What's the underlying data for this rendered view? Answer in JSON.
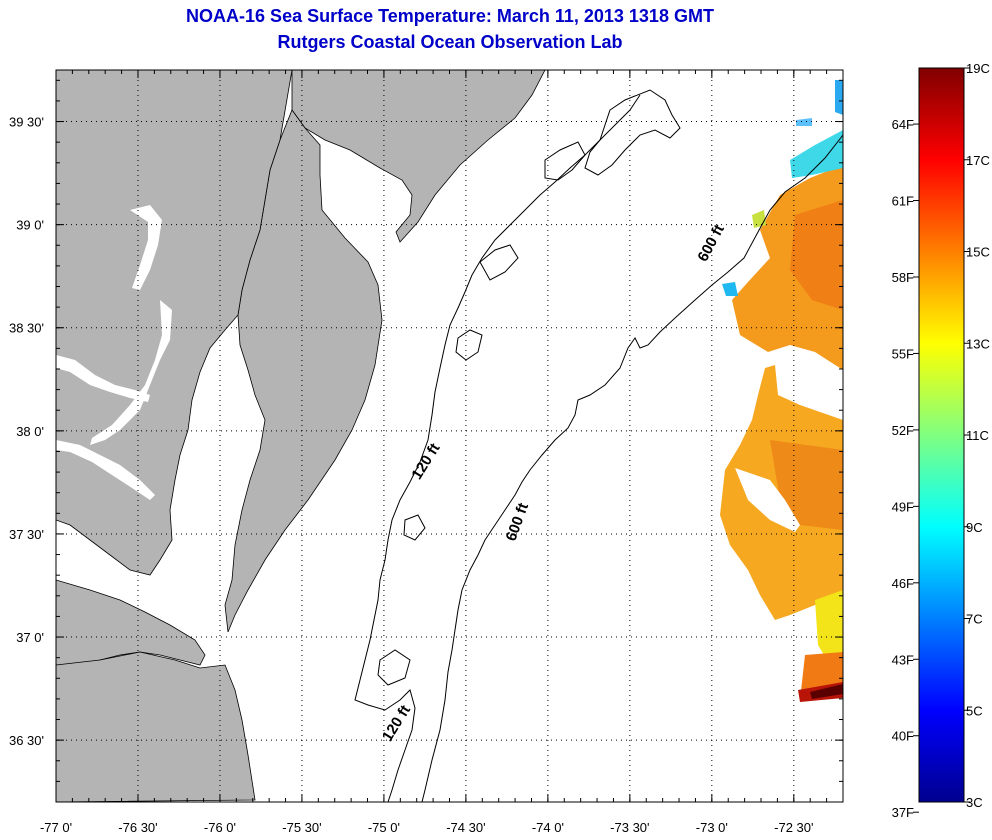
{
  "header": {
    "title": "NOAA-16 Sea Surface Temperature:  March 11, 2013 1318 GMT",
    "subtitle": "Rutgers Coastal Ocean Observation Lab"
  },
  "map": {
    "lon_range": [
      -77.0,
      -72.2
    ],
    "lat_range": [
      36.2,
      39.75
    ],
    "lon_ticks": [
      {
        "value": -77.0,
        "label": "-77 0'"
      },
      {
        "value": -76.5,
        "label": "-76 30'"
      },
      {
        "value": -76.0,
        "label": "-76 0'"
      },
      {
        "value": -75.5,
        "label": "-75 30'"
      },
      {
        "value": -75.0,
        "label": "-75 0'"
      },
      {
        "value": -74.5,
        "label": "-74 30'"
      },
      {
        "value": -74.0,
        "label": "-74 0'"
      },
      {
        "value": -73.5,
        "label": "-73 30'"
      },
      {
        "value": -73.0,
        "label": "-73 0'"
      },
      {
        "value": -72.5,
        "label": "-72 30'"
      }
    ],
    "lat_ticks": [
      {
        "value": 39.5,
        "label": "39 30'"
      },
      {
        "value": 39.0,
        "label": "39 0'"
      },
      {
        "value": 38.5,
        "label": "38 30'"
      },
      {
        "value": 38.0,
        "label": "38 0'"
      },
      {
        "value": 37.5,
        "label": "37 30'"
      },
      {
        "value": 37.0,
        "label": "37 0'"
      },
      {
        "value": 36.5,
        "label": "36 30'"
      }
    ],
    "grid": true,
    "land_color": "#b4b4b4",
    "contour_labels": [
      {
        "text": "600 ft",
        "lon": -72.98,
        "lat": 38.9,
        "angle": -62
      },
      {
        "text": "600 ft",
        "lon": -74.16,
        "lat": 37.55,
        "angle": -70
      },
      {
        "text": "120 ft",
        "lon": -74.72,
        "lat": 37.84,
        "angle": -58
      },
      {
        "text": "120 ft",
        "lon": -74.9,
        "lat": 36.57,
        "angle": -58
      }
    ]
  },
  "colorbar": {
    "min_c": 3,
    "max_c": 19,
    "colormap": "jet",
    "celsius_labels": [
      {
        "value": 3,
        "label": "3C"
      },
      {
        "value": 5,
        "label": "5C"
      },
      {
        "value": 7,
        "label": "7C"
      },
      {
        "value": 9,
        "label": "9C"
      },
      {
        "value": 11,
        "label": "11C"
      },
      {
        "value": 13,
        "label": "13C"
      },
      {
        "value": 15,
        "label": "15C"
      },
      {
        "value": 17,
        "label": "17C"
      },
      {
        "value": 19,
        "label": "19C"
      }
    ],
    "fahrenheit_labels": [
      {
        "value": 37,
        "label": "37F"
      },
      {
        "value": 40,
        "label": "40F"
      },
      {
        "value": 43,
        "label": "43F"
      },
      {
        "value": 46,
        "label": "46F"
      },
      {
        "value": 49,
        "label": "49F"
      },
      {
        "value": 52,
        "label": "52F"
      },
      {
        "value": 55,
        "label": "55F"
      },
      {
        "value": 58,
        "label": "58F"
      },
      {
        "value": 61,
        "label": "61F"
      },
      {
        "value": 64,
        "label": "64F"
      }
    ]
  }
}
